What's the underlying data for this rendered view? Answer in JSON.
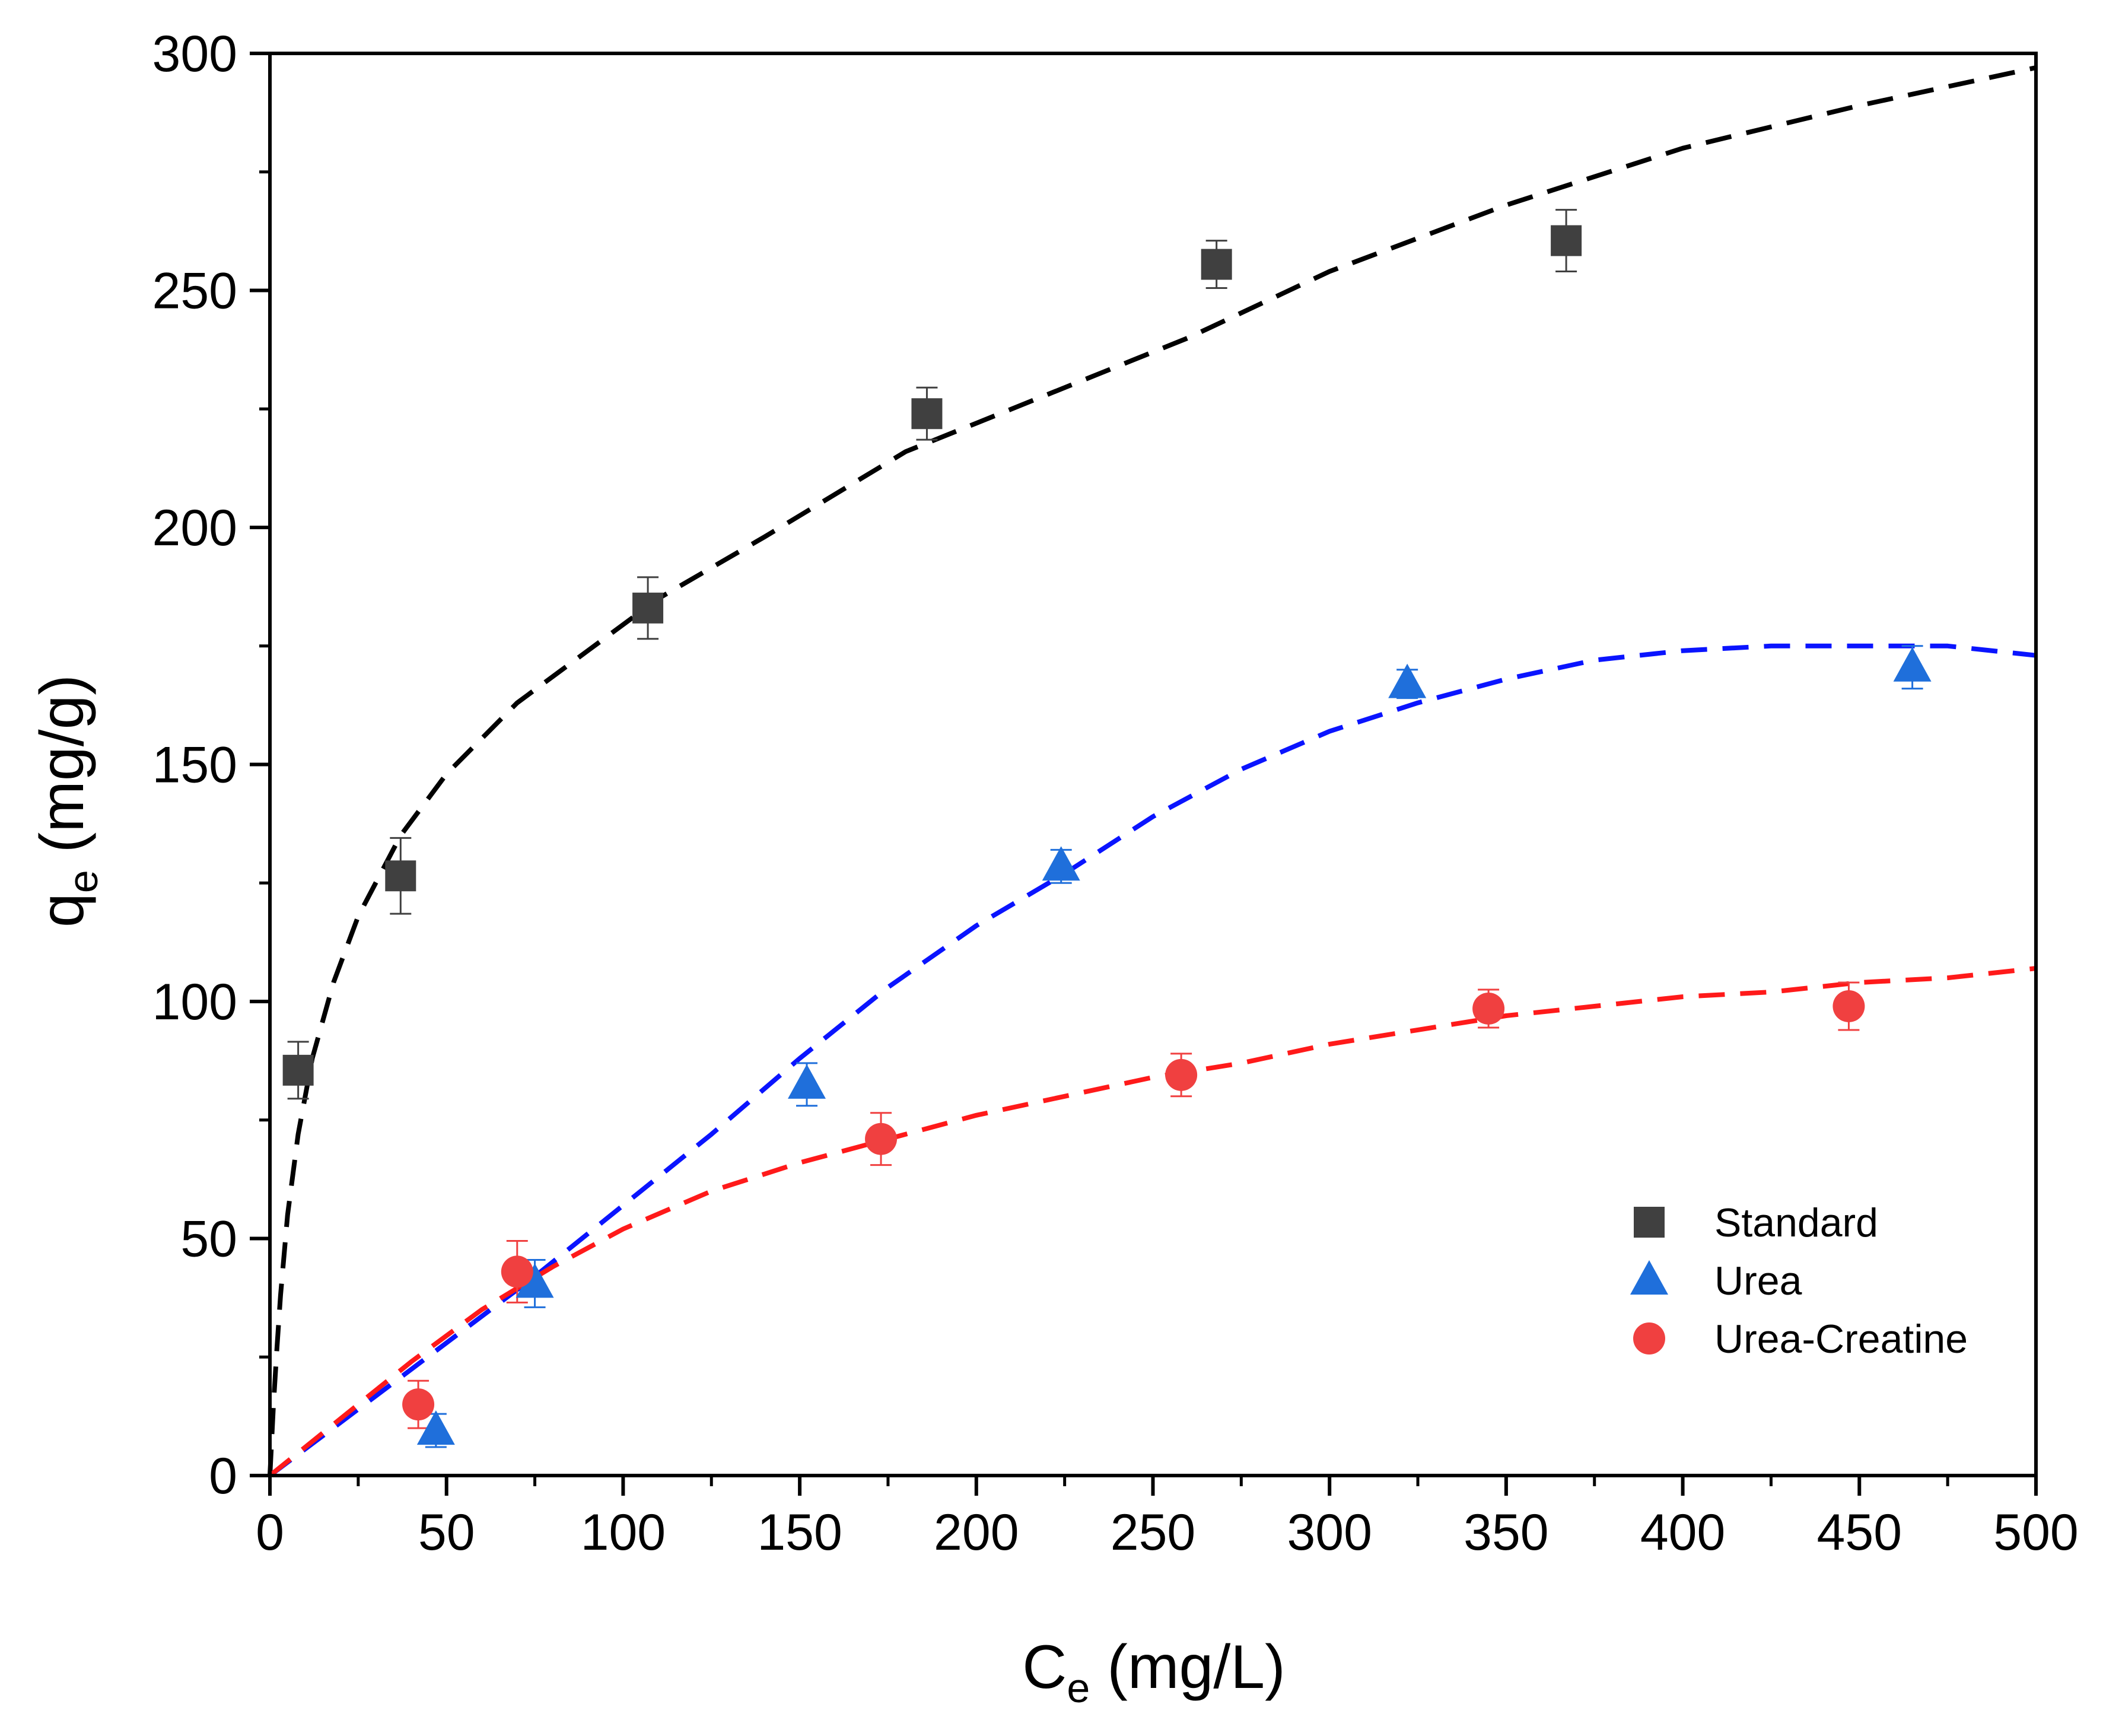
{
  "chart_data": {
    "type": "scatter",
    "title": "",
    "xlabel": {
      "main": "C",
      "sub": "e",
      "unit": " (mg/L)"
    },
    "ylabel": {
      "main": "q",
      "sub": "e",
      "unit": " (mg/g)"
    },
    "xlim": [
      0,
      500
    ],
    "ylim": [
      0,
      300
    ],
    "xticks": [
      0,
      50,
      100,
      150,
      200,
      250,
      300,
      350,
      400,
      450,
      500
    ],
    "yticks": [
      0,
      50,
      100,
      150,
      200,
      250,
      300
    ],
    "x_minor_step": 25,
    "y_minor_step": 25,
    "grid": false,
    "legend_position": "bottom-right",
    "series": [
      {
        "name": "Standard",
        "marker": "square",
        "color": "#404040",
        "fit_color": "#000000",
        "points": [
          {
            "x": 8,
            "y": 85.5,
            "err": 6
          },
          {
            "x": 37,
            "y": 126.5,
            "err": 8
          },
          {
            "x": 107,
            "y": 183,
            "err": 6.5
          },
          {
            "x": 186,
            "y": 224,
            "err": 5.5
          },
          {
            "x": 268,
            "y": 255.5,
            "err": 5
          },
          {
            "x": 367,
            "y": 260.5,
            "err": 6.5
          }
        ],
        "fit": [
          [
            0,
            0
          ],
          [
            1,
            15
          ],
          [
            2,
            27
          ],
          [
            3,
            38
          ],
          [
            5,
            55
          ],
          [
            8,
            72
          ],
          [
            12,
            88
          ],
          [
            18,
            104
          ],
          [
            25,
            118
          ],
          [
            37,
            135
          ],
          [
            50,
            148
          ],
          [
            70,
            163
          ],
          [
            90,
            174
          ],
          [
            110,
            185
          ],
          [
            140,
            198
          ],
          [
            180,
            216
          ],
          [
            220,
            228
          ],
          [
            260,
            240
          ],
          [
            300,
            254
          ],
          [
            350,
            268
          ],
          [
            400,
            280
          ],
          [
            450,
            289
          ],
          [
            500,
            297
          ]
        ]
      },
      {
        "name": "Urea",
        "marker": "triangle",
        "color": "#1f6fdb",
        "fit_color": "#0a14ff",
        "points": [
          {
            "x": 47,
            "y": 9.5,
            "err": 3.5
          },
          {
            "x": 75,
            "y": 40.5,
            "err": 5
          },
          {
            "x": 152,
            "y": 82.5,
            "err": 4.5
          },
          {
            "x": 224,
            "y": 128.5,
            "err": 3.5
          },
          {
            "x": 322,
            "y": 167,
            "err": 3
          },
          {
            "x": 465,
            "y": 170.5,
            "err": 4.5
          }
        ],
        "fit": [
          [
            0,
            0
          ],
          [
            25,
            14
          ],
          [
            50,
            28
          ],
          [
            75,
            42
          ],
          [
            100,
            57
          ],
          [
            125,
            72
          ],
          [
            150,
            88
          ],
          [
            175,
            103
          ],
          [
            200,
            116
          ],
          [
            225,
            127
          ],
          [
            250,
            139
          ],
          [
            275,
            149
          ],
          [
            300,
            157
          ],
          [
            325,
            163
          ],
          [
            350,
            168
          ],
          [
            375,
            172
          ],
          [
            400,
            174
          ],
          [
            425,
            175
          ],
          [
            450,
            175
          ],
          [
            475,
            175
          ],
          [
            500,
            173
          ]
        ]
      },
      {
        "name": "Urea-Creatine",
        "marker": "circle",
        "color": "#f04040",
        "fit_color": "#ff1a1a",
        "points": [
          {
            "x": 42,
            "y": 15,
            "err": 5
          },
          {
            "x": 70,
            "y": 43,
            "err": 6.5
          },
          {
            "x": 173,
            "y": 71,
            "err": 5.5
          },
          {
            "x": 258,
            "y": 84.5,
            "err": 4.5
          },
          {
            "x": 345,
            "y": 98.5,
            "err": 4
          },
          {
            "x": 447,
            "y": 99,
            "err": 5
          }
        ],
        "fit": [
          [
            0,
            0
          ],
          [
            20,
            12
          ],
          [
            40,
            24
          ],
          [
            60,
            35
          ],
          [
            80,
            44
          ],
          [
            100,
            52
          ],
          [
            125,
            60
          ],
          [
            150,
            66
          ],
          [
            175,
            71
          ],
          [
            200,
            76
          ],
          [
            225,
            80
          ],
          [
            250,
            84
          ],
          [
            275,
            87
          ],
          [
            300,
            91
          ],
          [
            325,
            94
          ],
          [
            350,
            97
          ],
          [
            375,
            99
          ],
          [
            400,
            101
          ],
          [
            425,
            102
          ],
          [
            450,
            104
          ],
          [
            475,
            105
          ],
          [
            500,
            107
          ]
        ]
      }
    ]
  }
}
